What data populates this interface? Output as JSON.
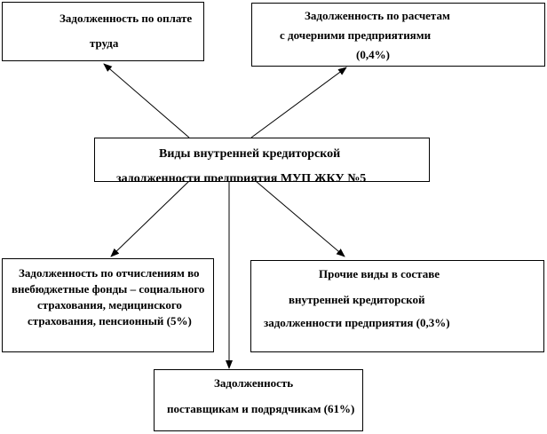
{
  "diagram": {
    "center": {
      "lines": [
        "Виды внутренней кредиторской",
        "задолженности предприятия МУП ЖКУ №5"
      ]
    },
    "top_left": {
      "lines": [
        "Задолженность по оплате",
        "труда"
      ]
    },
    "top_right": {
      "lines": [
        "Задолженность по расчетам",
        "с дочерними предприятиями",
        "(0,4%)"
      ]
    },
    "bottom_left": {
      "lines": [
        "Задолженность по отчислениям во",
        "внебюджетные фонды – социального",
        "страхования, медицинского",
        "страхования, пенсионный (5%)"
      ]
    },
    "bottom_right": {
      "lines": [
        "Прочие виды в составе",
        "внутренней кредиторской",
        "задолженности предприятия (0,3%)"
      ]
    },
    "bottom_center": {
      "lines": [
        "Задолженность",
        "поставщикам и подрядчикам (61%)"
      ]
    },
    "line_color": "#000000"
  }
}
